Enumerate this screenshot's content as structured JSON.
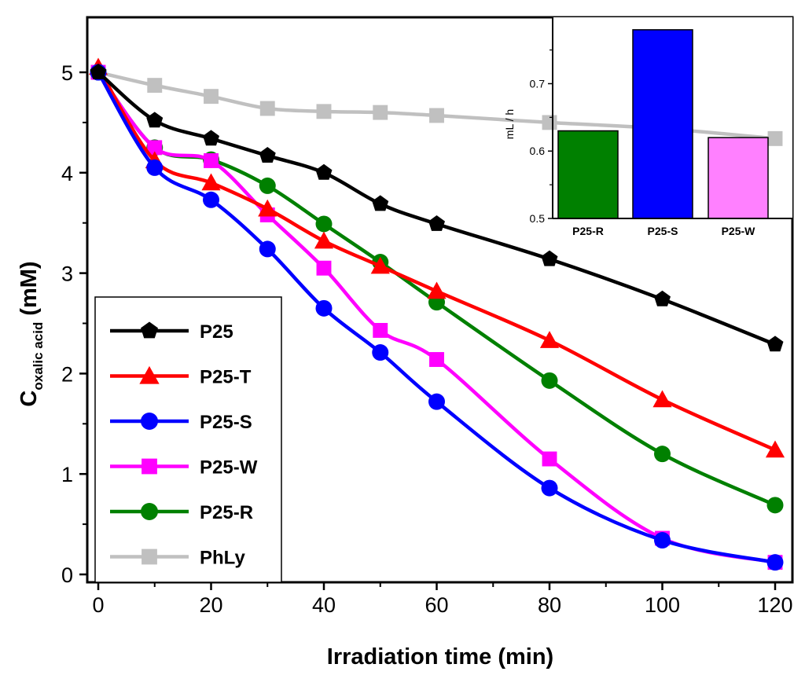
{
  "chart_data": [
    {
      "type": "line",
      "title": "",
      "xlabel": "Irradiation time (min)",
      "ylabel": {
        "main": "C",
        "subscript": "oxalic acid",
        "unit": "(mM)"
      },
      "xlim": [
        -1,
        122
      ],
      "ylim": [
        0,
        5.45
      ],
      "xticks": [
        0,
        20,
        40,
        60,
        80,
        100,
        120
      ],
      "yticks": [
        0,
        1,
        2,
        3,
        4,
        5
      ],
      "legend_position": "bottom-left",
      "series": [
        {
          "name": "P25",
          "color": "#000000",
          "marker": "pentagon",
          "x": [
            0,
            10,
            20,
            30,
            40,
            50,
            60,
            80,
            100,
            120
          ],
          "y": [
            5.0,
            4.52,
            4.34,
            4.17,
            4.0,
            3.69,
            3.49,
            3.14,
            2.74,
            2.29
          ]
        },
        {
          "name": "P25-T",
          "color": "#ff0000",
          "marker": "triangle",
          "x": [
            0,
            10,
            20,
            30,
            40,
            50,
            60,
            80,
            100,
            120
          ],
          "y": [
            5.05,
            4.12,
            3.9,
            3.64,
            3.32,
            3.07,
            2.82,
            2.33,
            1.74,
            1.24
          ]
        },
        {
          "name": "P25-S",
          "color": "#0000ff",
          "marker": "circle",
          "x": [
            0,
            10,
            20,
            30,
            40,
            50,
            60,
            80,
            100,
            120
          ],
          "y": [
            5.0,
            4.05,
            3.73,
            3.24,
            2.65,
            2.21,
            1.72,
            0.86,
            0.34,
            0.12
          ]
        },
        {
          "name": "P25-W",
          "color": "#ff00ff",
          "marker": "square",
          "x": [
            0,
            10,
            20,
            30,
            40,
            50,
            60,
            80,
            100,
            120
          ],
          "y": [
            5.0,
            4.25,
            4.12,
            3.58,
            3.05,
            2.43,
            2.14,
            1.15,
            0.36,
            0.12
          ]
        },
        {
          "name": "P25-R",
          "color": "#008000",
          "marker": "circle",
          "x": [
            0,
            10,
            20,
            30,
            40,
            50,
            60,
            80,
            100,
            120
          ],
          "y": [
            5.0,
            4.25,
            4.13,
            3.87,
            3.49,
            3.11,
            2.71,
            1.93,
            1.2,
            0.69
          ]
        },
        {
          "name": "PhLy",
          "color": "#c0c0c0",
          "marker": "square",
          "x": [
            0,
            10,
            20,
            30,
            40,
            50,
            60,
            80,
            100,
            120
          ],
          "y": [
            5.0,
            4.87,
            4.76,
            4.64,
            4.61,
            4.6,
            4.57,
            4.5,
            4.44,
            4.34
          ]
        }
      ]
    },
    {
      "type": "bar",
      "title": "",
      "xlabel": "",
      "ylabel": "mL / h",
      "categories": [
        "P25-R",
        "P25-S",
        "P25-W"
      ],
      "values": [
        0.63,
        0.78,
        0.62
      ],
      "colors": [
        "#008000",
        "#0000ff",
        "#ff80ff"
      ],
      "ylim": [
        0.5,
        0.8
      ],
      "yticks": [
        0.5,
        0.6,
        0.7
      ],
      "position": "top-right inset"
    }
  ]
}
